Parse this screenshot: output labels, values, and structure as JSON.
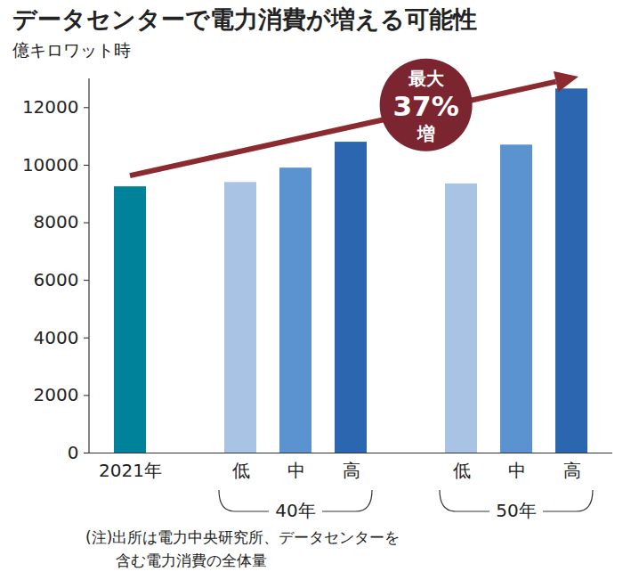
{
  "chart_data": {
    "type": "bar",
    "title": "データセンターで電力消費が増える可能性",
    "y_label": "億キロワット時",
    "categories": [
      "2021年",
      "低",
      "中",
      "高",
      "低",
      "中",
      "高"
    ],
    "groups": [
      null,
      "40年",
      "40年",
      "40年",
      "50年",
      "50年",
      "50年"
    ],
    "values": [
      9250,
      9400,
      9900,
      10800,
      9350,
      10700,
      12650
    ],
    "colors": [
      "#00839a",
      "#a8c3e3",
      "#5b92d0",
      "#2c66b0",
      "#a8c3e3",
      "#5b92d0",
      "#2c66b0"
    ],
    "ylim": [
      0,
      13000
    ],
    "yticks": [
      0,
      2000,
      4000,
      6000,
      8000,
      10000,
      12000
    ],
    "grid": false,
    "annotation": [
      "最大",
      "37%",
      "増"
    ],
    "note": [
      "(注)出所は電力中央研究所、データセンターを",
      "含む電力消費の全体量"
    ]
  }
}
